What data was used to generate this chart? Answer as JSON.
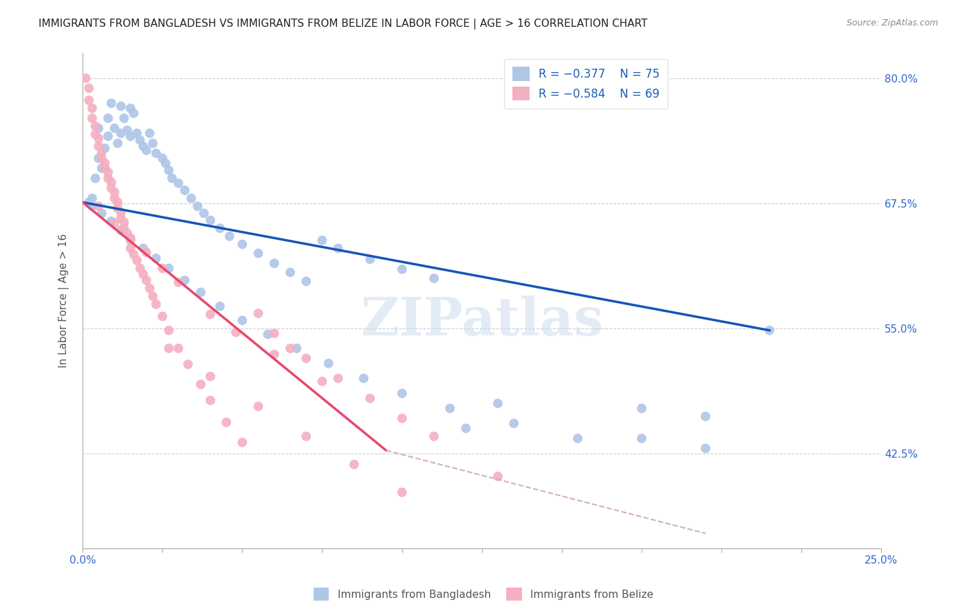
{
  "title": "IMMIGRANTS FROM BANGLADESH VS IMMIGRANTS FROM BELIZE IN LABOR FORCE | AGE > 16 CORRELATION CHART",
  "source": "Source: ZipAtlas.com",
  "ylabel_label": "In Labor Force | Age > 16",
  "ytick_labels": [
    "80.0%",
    "67.5%",
    "55.0%",
    "42.5%"
  ],
  "ytick_values": [
    0.8,
    0.675,
    0.55,
    0.425
  ],
  "xlim": [
    0.0,
    0.25
  ],
  "ylim": [
    0.33,
    0.825
  ],
  "legend_r1": "R = −0.377",
  "legend_n1": "N = 75",
  "legend_r2": "R = −0.584",
  "legend_n2": "N = 69",
  "color_blue": "#aec6e8",
  "color_pink": "#f4afc0",
  "line_blue": "#1555b7",
  "line_pink": "#e8476a",
  "line_dashed_color": "#d0b0b8",
  "watermark": "ZIPatlas",
  "blue_line_x": [
    0.0,
    0.215
  ],
  "blue_line_y": [
    0.676,
    0.548
  ],
  "pink_line_x": [
    0.0,
    0.095
  ],
  "pink_line_y": [
    0.676,
    0.428
  ],
  "dashed_line_x": [
    0.095,
    0.195
  ],
  "dashed_line_y": [
    0.428,
    0.345
  ],
  "blue_x": [
    0.002,
    0.003,
    0.004,
    0.005,
    0.005,
    0.006,
    0.007,
    0.008,
    0.008,
    0.009,
    0.01,
    0.011,
    0.012,
    0.012,
    0.013,
    0.014,
    0.015,
    0.015,
    0.016,
    0.017,
    0.018,
    0.019,
    0.02,
    0.021,
    0.022,
    0.023,
    0.025,
    0.026,
    0.027,
    0.028,
    0.03,
    0.032,
    0.034,
    0.036,
    0.038,
    0.04,
    0.043,
    0.046,
    0.05,
    0.055,
    0.06,
    0.065,
    0.07,
    0.075,
    0.08,
    0.09,
    0.1,
    0.11,
    0.12,
    0.13,
    0.003,
    0.006,
    0.009,
    0.012,
    0.015,
    0.019,
    0.023,
    0.027,
    0.032,
    0.037,
    0.043,
    0.05,
    0.058,
    0.067,
    0.077,
    0.088,
    0.1,
    0.115,
    0.135,
    0.155,
    0.175,
    0.195,
    0.215,
    0.175,
    0.195
  ],
  "blue_y": [
    0.676,
    0.68,
    0.7,
    0.75,
    0.72,
    0.71,
    0.73,
    0.76,
    0.742,
    0.775,
    0.75,
    0.735,
    0.745,
    0.772,
    0.76,
    0.748,
    0.742,
    0.77,
    0.765,
    0.745,
    0.738,
    0.732,
    0.728,
    0.745,
    0.735,
    0.725,
    0.72,
    0.715,
    0.708,
    0.7,
    0.695,
    0.688,
    0.68,
    0.672,
    0.665,
    0.658,
    0.65,
    0.642,
    0.634,
    0.625,
    0.615,
    0.606,
    0.597,
    0.638,
    0.63,
    0.619,
    0.609,
    0.6,
    0.45,
    0.475,
    0.672,
    0.665,
    0.657,
    0.648,
    0.64,
    0.63,
    0.62,
    0.61,
    0.598,
    0.586,
    0.572,
    0.558,
    0.544,
    0.53,
    0.515,
    0.5,
    0.485,
    0.47,
    0.455,
    0.44,
    0.47,
    0.462,
    0.548,
    0.44,
    0.43
  ],
  "pink_x": [
    0.001,
    0.002,
    0.002,
    0.003,
    0.003,
    0.004,
    0.004,
    0.005,
    0.005,
    0.006,
    0.006,
    0.007,
    0.007,
    0.008,
    0.008,
    0.009,
    0.009,
    0.01,
    0.01,
    0.011,
    0.011,
    0.012,
    0.012,
    0.013,
    0.013,
    0.014,
    0.015,
    0.015,
    0.016,
    0.017,
    0.018,
    0.019,
    0.02,
    0.021,
    0.022,
    0.023,
    0.025,
    0.027,
    0.03,
    0.033,
    0.037,
    0.04,
    0.045,
    0.05,
    0.055,
    0.06,
    0.065,
    0.07,
    0.08,
    0.09,
    0.1,
    0.11,
    0.13,
    0.027,
    0.04,
    0.055,
    0.07,
    0.085,
    0.1,
    0.005,
    0.01,
    0.015,
    0.02,
    0.025,
    0.03,
    0.04,
    0.048,
    0.06,
    0.075
  ],
  "pink_y": [
    0.8,
    0.79,
    0.778,
    0.77,
    0.76,
    0.752,
    0.744,
    0.74,
    0.732,
    0.726,
    0.72,
    0.715,
    0.71,
    0.706,
    0.7,
    0.696,
    0.69,
    0.686,
    0.68,
    0.676,
    0.67,
    0.666,
    0.66,
    0.656,
    0.65,
    0.645,
    0.638,
    0.63,
    0.624,
    0.618,
    0.61,
    0.604,
    0.598,
    0.59,
    0.582,
    0.574,
    0.562,
    0.548,
    0.53,
    0.514,
    0.494,
    0.478,
    0.456,
    0.436,
    0.565,
    0.545,
    0.53,
    0.52,
    0.5,
    0.48,
    0.46,
    0.442,
    0.402,
    0.53,
    0.502,
    0.472,
    0.442,
    0.414,
    0.386,
    0.672,
    0.655,
    0.64,
    0.626,
    0.61,
    0.596,
    0.564,
    0.546,
    0.524,
    0.497
  ]
}
